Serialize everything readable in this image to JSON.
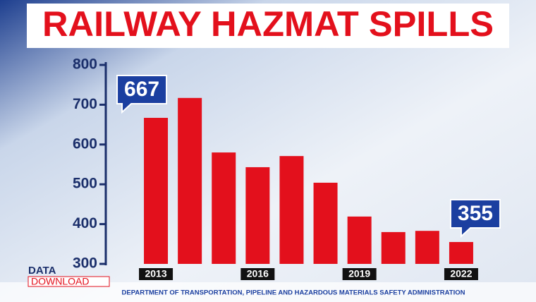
{
  "chart_data": {
    "type": "bar",
    "title": "RAILWAY HAZMAT SPILLS",
    "categories": [
      "2013",
      null,
      null,
      "2016",
      null,
      null,
      "2019",
      null,
      null,
      "2022"
    ],
    "values": [
      667,
      717,
      580,
      543,
      571,
      504,
      419,
      380,
      383,
      355
    ],
    "value_labels": [
      667,
      null,
      null,
      null,
      null,
      null,
      null,
      null,
      null,
      355
    ],
    "color": "#e3101c",
    "ylim": [
      300,
      800
    ],
    "yticks": [
      300,
      400,
      500,
      600,
      700,
      800
    ],
    "logo": [
      "DATA",
      "DOWNLOAD"
    ],
    "source": "DEPARTMENT OF TRANSPORTATION, PIPELINE AND HAZARDOUS MATERIALS SAFETY ADMINISTRATION"
  }
}
